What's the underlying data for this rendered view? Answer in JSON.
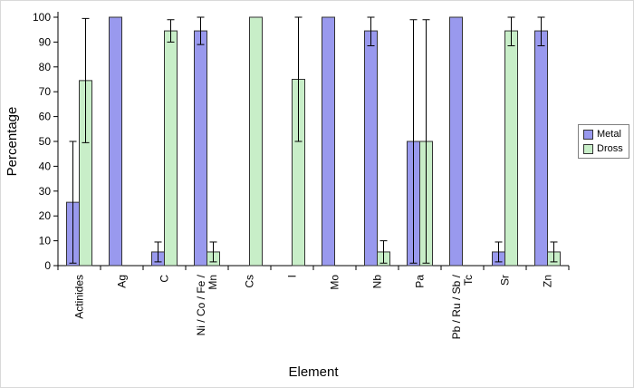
{
  "chart_data": {
    "type": "bar",
    "title": "",
    "xlabel": "Element",
    "ylabel": "Percentage",
    "ylim": [
      0,
      100
    ],
    "yticks": [
      0,
      10,
      20,
      30,
      40,
      50,
      60,
      70,
      80,
      90,
      100
    ],
    "grid": false,
    "legend_position": "right",
    "categories": [
      "Actinides",
      "Ag",
      "C",
      "Ni / Co / Fe /\nMn",
      "Cs",
      "I",
      "Mo",
      "Nb",
      "Pa",
      "Pb / Ru / Sb /\nTc",
      "Sr",
      "Zn"
    ],
    "series": [
      {
        "name": "Metal",
        "color": "#9999EE",
        "values": [
          25.5,
          100,
          5.5,
          94.5,
          0,
          0,
          100,
          94.5,
          50,
          100,
          5.5,
          94.5
        ],
        "errors": [
          24.5,
          0,
          4,
          5.5,
          0,
          0,
          0,
          6,
          49,
          0,
          4,
          6
        ]
      },
      {
        "name": "Dross",
        "color": "#C8EEC8",
        "values": [
          74.5,
          0,
          94.5,
          5.5,
          100,
          75,
          0,
          5.5,
          50,
          0,
          94.5,
          5.5
        ],
        "errors": [
          25,
          0,
          4.5,
          4,
          0,
          25,
          0,
          4.5,
          49,
          0,
          6,
          4
        ]
      }
    ]
  }
}
